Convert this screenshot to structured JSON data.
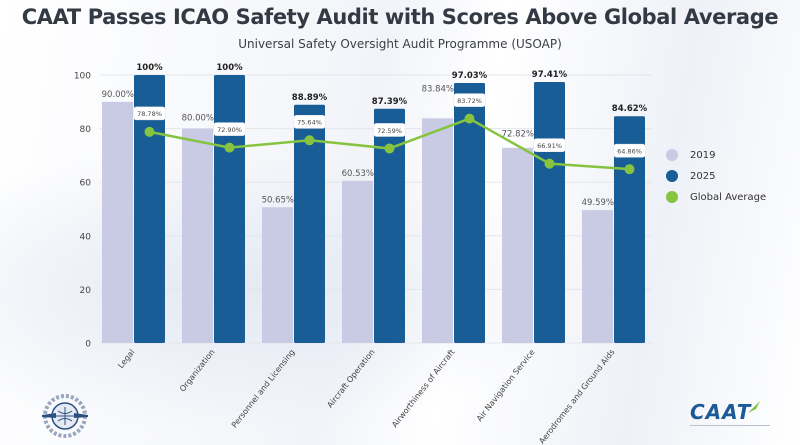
{
  "title": "CAAT Passes ICAO Safety Audit with Scores Above Global Average",
  "subtitle": "Universal Safety Oversight Audit Programme (USOAP)",
  "logos": {
    "left": "ICAO-OACI",
    "right": "CAAT"
  },
  "colors": {
    "y2019": "#c8cbe3",
    "y2025": "#195d96",
    "global": "#86c440",
    "grid": "#e3e6ec",
    "text": "#333a44"
  },
  "chart_data": {
    "type": "bar",
    "title": "CAAT Passes ICAO Safety Audit with Scores Above Global Average",
    "subtitle": "Universal Safety Oversight Audit Programme (USOAP)",
    "xlabel": "",
    "ylabel": "",
    "ylim": [
      0,
      100
    ],
    "yticks": [
      0,
      20,
      40,
      60,
      80,
      100
    ],
    "grid": true,
    "legend_position": "right",
    "categories": [
      "Legal",
      "Organization",
      "Personnel and Licensing",
      "Aircraft Operation",
      "Airworthiness of Aircraft",
      "Air Navigation Service",
      "Aerodromes and Ground Aids"
    ],
    "series": [
      {
        "name": "2019",
        "type": "bar",
        "values": [
          90.0,
          80.0,
          50.65,
          60.53,
          83.84,
          72.82,
          49.59
        ],
        "labels": [
          "90.00%",
          "80.00%",
          "50.65%",
          "60.53%",
          "83.84%",
          "72.82%",
          "49.59%"
        ]
      },
      {
        "name": "2025",
        "type": "bar",
        "values": [
          100,
          100,
          88.89,
          87.39,
          97.03,
          97.41,
          84.62
        ],
        "labels": [
          "100%",
          "100%",
          "88.89%",
          "87.39%",
          "97.03%",
          "97.41%",
          "84.62%"
        ]
      },
      {
        "name": "Global Average",
        "type": "line",
        "values": [
          78.78,
          72.9,
          75.64,
          72.59,
          83.72,
          66.91,
          64.86
        ],
        "labels": [
          "78.78%",
          "72.90%",
          "75.64%",
          "72.59%",
          "83.72%",
          "66.91%",
          "64.86%"
        ]
      }
    ]
  }
}
